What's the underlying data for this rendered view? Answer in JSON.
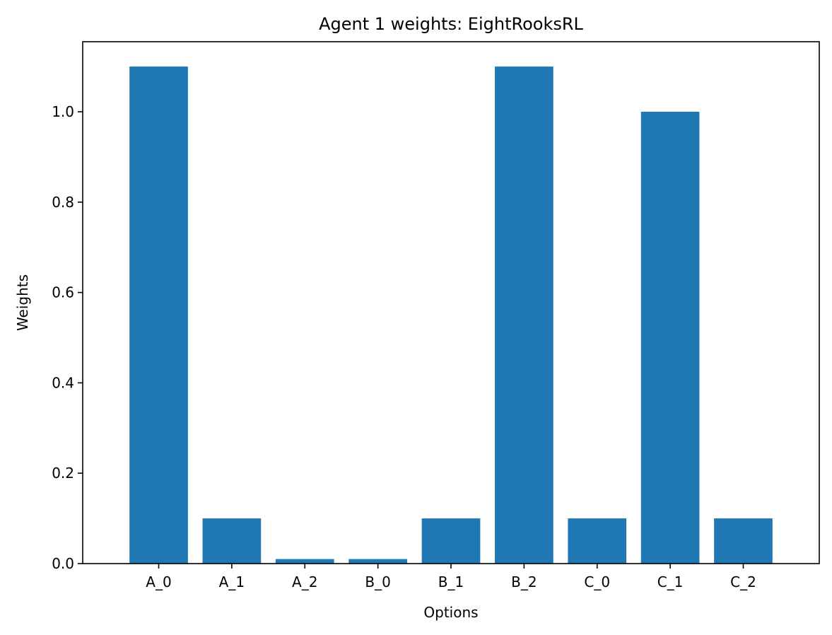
{
  "chart_data": {
    "type": "bar",
    "title": "Agent 1 weights: EightRooksRL",
    "xlabel": "Options",
    "ylabel": "Weights",
    "categories": [
      "A_0",
      "A_1",
      "A_2",
      "B_0",
      "B_1",
      "B_2",
      "C_0",
      "C_1",
      "C_2"
    ],
    "values": [
      1.1,
      0.1,
      0.01,
      0.01,
      0.1,
      1.1,
      0.1,
      1.0,
      0.1
    ],
    "ylim": [
      0,
      1.155
    ],
    "yticks": [
      0.0,
      0.2,
      0.4,
      0.6,
      0.8,
      1.0
    ],
    "ytick_labels": [
      "0.0",
      "0.2",
      "0.4",
      "0.6",
      "0.8",
      "1.0"
    ],
    "bar_color": "#1f77b4",
    "grid": false,
    "legend": "none"
  }
}
